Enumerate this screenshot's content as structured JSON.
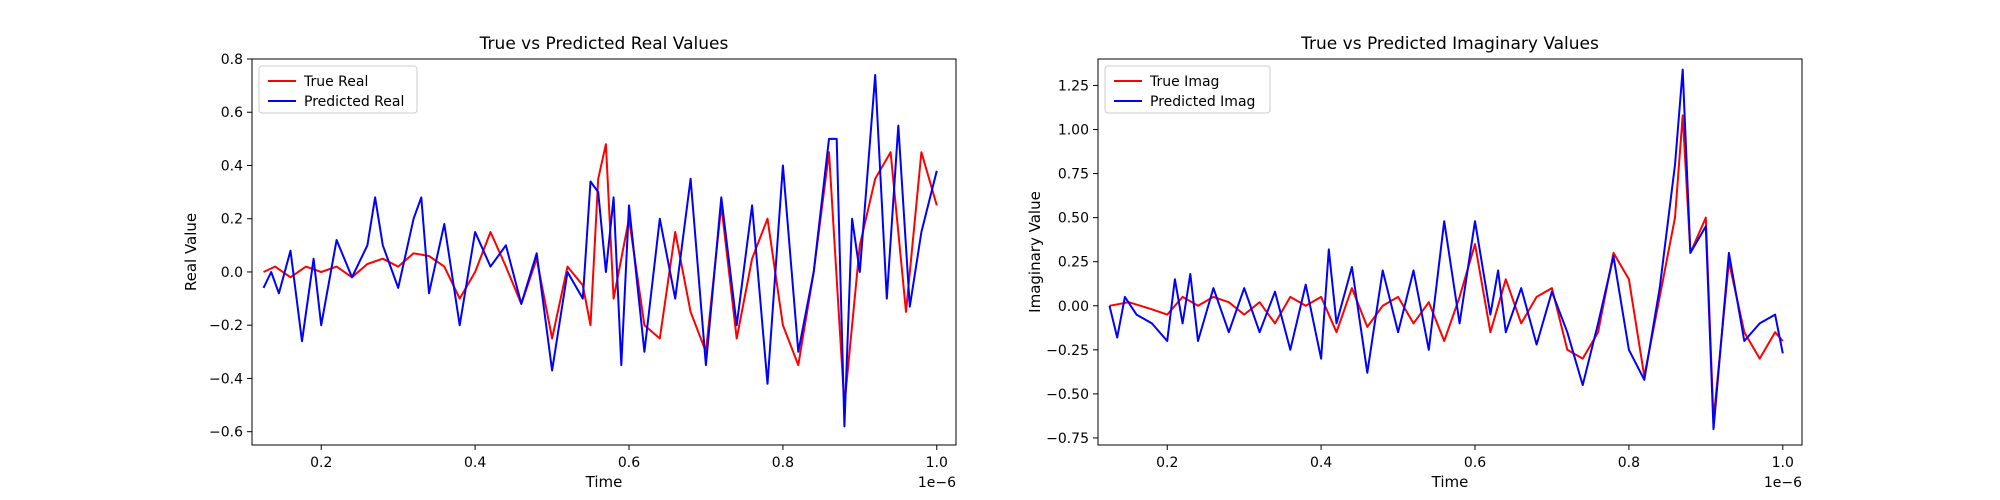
{
  "chart_data": [
    {
      "type": "line",
      "title": "True vs Predicted Real Values",
      "xlabel": "Time",
      "ylabel": "Real Value",
      "x_offset_label": "1e−6",
      "xlim": [
        0.11,
        1.025
      ],
      "ylim": [
        -0.65,
        0.8
      ],
      "xticks": [
        0.2,
        0.4,
        0.6,
        0.8,
        1.0
      ],
      "xtick_labels": [
        "0.2",
        "0.4",
        "0.6",
        "0.8",
        "1.0"
      ],
      "yticks": [
        -0.6,
        -0.4,
        -0.2,
        0.0,
        0.2,
        0.4,
        0.6,
        0.8
      ],
      "ytick_labels": [
        "−0.6",
        "−0.4",
        "−0.2",
        "0.0",
        "0.2",
        "0.4",
        "0.6",
        "0.8"
      ],
      "grid": false,
      "legend_position": "top-left",
      "series": [
        {
          "name": "True Real",
          "color": "#ff0000",
          "x": [
            0.125,
            0.14,
            0.16,
            0.18,
            0.2,
            0.22,
            0.24,
            0.26,
            0.28,
            0.3,
            0.32,
            0.34,
            0.36,
            0.38,
            0.4,
            0.42,
            0.44,
            0.46,
            0.48,
            0.5,
            0.52,
            0.54,
            0.55,
            0.56,
            0.57,
            0.58,
            0.6,
            0.62,
            0.64,
            0.66,
            0.68,
            0.7,
            0.72,
            0.74,
            0.76,
            0.78,
            0.8,
            0.82,
            0.84,
            0.86,
            0.88,
            0.9,
            0.92,
            0.94,
            0.96,
            0.98,
            1.0
          ],
          "y": [
            0.0,
            0.02,
            -0.02,
            0.02,
            0.0,
            0.02,
            -0.02,
            0.03,
            0.05,
            0.02,
            0.07,
            0.06,
            0.02,
            -0.1,
            0.0,
            0.15,
            0.02,
            -0.12,
            0.05,
            -0.25,
            0.02,
            -0.05,
            -0.2,
            0.35,
            0.48,
            -0.1,
            0.2,
            -0.2,
            -0.25,
            0.15,
            -0.15,
            -0.3,
            0.25,
            -0.25,
            0.05,
            0.2,
            -0.2,
            -0.35,
            0.0,
            0.45,
            -0.5,
            0.1,
            0.35,
            0.45,
            -0.15,
            0.45,
            0.25
          ]
        },
        {
          "name": "Predicted Real",
          "color": "#0000ff",
          "x": [
            0.125,
            0.135,
            0.145,
            0.16,
            0.175,
            0.19,
            0.2,
            0.22,
            0.24,
            0.26,
            0.27,
            0.28,
            0.3,
            0.32,
            0.33,
            0.34,
            0.36,
            0.38,
            0.4,
            0.42,
            0.44,
            0.46,
            0.48,
            0.5,
            0.52,
            0.54,
            0.55,
            0.56,
            0.57,
            0.58,
            0.59,
            0.6,
            0.62,
            0.64,
            0.66,
            0.68,
            0.7,
            0.72,
            0.74,
            0.76,
            0.78,
            0.8,
            0.82,
            0.84,
            0.86,
            0.87,
            0.88,
            0.89,
            0.9,
            0.92,
            0.935,
            0.95,
            0.965,
            0.98,
            1.0
          ],
          "y": [
            -0.06,
            0.0,
            -0.08,
            0.08,
            -0.26,
            0.05,
            -0.2,
            0.12,
            -0.02,
            0.1,
            0.28,
            0.1,
            -0.06,
            0.2,
            0.28,
            -0.08,
            0.18,
            -0.2,
            0.15,
            0.02,
            0.1,
            -0.12,
            0.07,
            -0.37,
            0.0,
            -0.1,
            0.34,
            0.3,
            0.0,
            0.28,
            -0.35,
            0.25,
            -0.3,
            0.2,
            -0.1,
            0.35,
            -0.35,
            0.28,
            -0.2,
            0.25,
            -0.42,
            0.4,
            -0.3,
            0.0,
            0.5,
            0.5,
            -0.58,
            0.2,
            0.0,
            0.74,
            -0.1,
            0.55,
            -0.13,
            0.15,
            0.38
          ]
        }
      ]
    },
    {
      "type": "line",
      "title": "True vs Predicted Imaginary Values",
      "xlabel": "Time",
      "ylabel": "Imaginary Value",
      "x_offset_label": "1e−6",
      "xlim": [
        0.11,
        1.025
      ],
      "ylim": [
        -0.79,
        1.4
      ],
      "xticks": [
        0.2,
        0.4,
        0.6,
        0.8,
        1.0
      ],
      "xtick_labels": [
        "0.2",
        "0.4",
        "0.6",
        "0.8",
        "1.0"
      ],
      "yticks": [
        -0.75,
        -0.5,
        -0.25,
        0.0,
        0.25,
        0.5,
        0.75,
        1.0,
        1.25
      ],
      "ytick_labels": [
        "−0.75",
        "−0.50",
        "−0.25",
        "0.00",
        "0.25",
        "0.50",
        "0.75",
        "1.00",
        "1.25"
      ],
      "grid": false,
      "legend_position": "top-left",
      "series": [
        {
          "name": "True Imag",
          "color": "#ff0000",
          "x": [
            0.125,
            0.15,
            0.18,
            0.2,
            0.22,
            0.24,
            0.26,
            0.28,
            0.3,
            0.32,
            0.34,
            0.36,
            0.38,
            0.4,
            0.42,
            0.44,
            0.46,
            0.48,
            0.5,
            0.52,
            0.54,
            0.56,
            0.58,
            0.6,
            0.62,
            0.64,
            0.66,
            0.68,
            0.7,
            0.72,
            0.74,
            0.76,
            0.78,
            0.8,
            0.82,
            0.84,
            0.86,
            0.87,
            0.88,
            0.9,
            0.91,
            0.93,
            0.95,
            0.97,
            0.99,
            1.0
          ],
          "y": [
            0.0,
            0.02,
            -0.02,
            -0.05,
            0.05,
            0.0,
            0.05,
            0.02,
            -0.05,
            0.02,
            -0.1,
            0.05,
            0.0,
            0.05,
            -0.15,
            0.1,
            -0.12,
            0.0,
            0.05,
            -0.1,
            0.02,
            -0.2,
            0.05,
            0.35,
            -0.15,
            0.15,
            -0.1,
            0.05,
            0.1,
            -0.25,
            -0.3,
            -0.15,
            0.3,
            0.15,
            -0.4,
            0.05,
            0.5,
            1.08,
            0.3,
            0.5,
            -0.65,
            0.25,
            -0.15,
            -0.3,
            -0.15,
            -0.2
          ]
        },
        {
          "name": "Predicted Imag",
          "color": "#0000ff",
          "x": [
            0.125,
            0.135,
            0.145,
            0.16,
            0.18,
            0.2,
            0.21,
            0.22,
            0.23,
            0.24,
            0.26,
            0.28,
            0.3,
            0.32,
            0.34,
            0.36,
            0.38,
            0.4,
            0.41,
            0.42,
            0.44,
            0.46,
            0.48,
            0.5,
            0.52,
            0.54,
            0.56,
            0.58,
            0.6,
            0.62,
            0.63,
            0.64,
            0.66,
            0.68,
            0.7,
            0.72,
            0.74,
            0.76,
            0.78,
            0.8,
            0.82,
            0.84,
            0.86,
            0.87,
            0.88,
            0.9,
            0.91,
            0.93,
            0.95,
            0.97,
            0.99,
            1.0
          ],
          "y": [
            0.0,
            -0.18,
            0.05,
            -0.05,
            -0.1,
            -0.2,
            0.15,
            -0.1,
            0.18,
            -0.2,
            0.1,
            -0.15,
            0.1,
            -0.15,
            0.08,
            -0.25,
            0.12,
            -0.3,
            0.32,
            -0.1,
            0.22,
            -0.38,
            0.2,
            -0.15,
            0.2,
            -0.25,
            0.48,
            -0.1,
            0.48,
            -0.05,
            0.2,
            -0.15,
            0.1,
            -0.22,
            0.08,
            -0.15,
            -0.45,
            -0.1,
            0.28,
            -0.25,
            -0.42,
            0.1,
            0.8,
            1.34,
            0.3,
            0.45,
            -0.7,
            0.3,
            -0.2,
            -0.1,
            -0.05,
            -0.27
          ]
        }
      ]
    }
  ]
}
